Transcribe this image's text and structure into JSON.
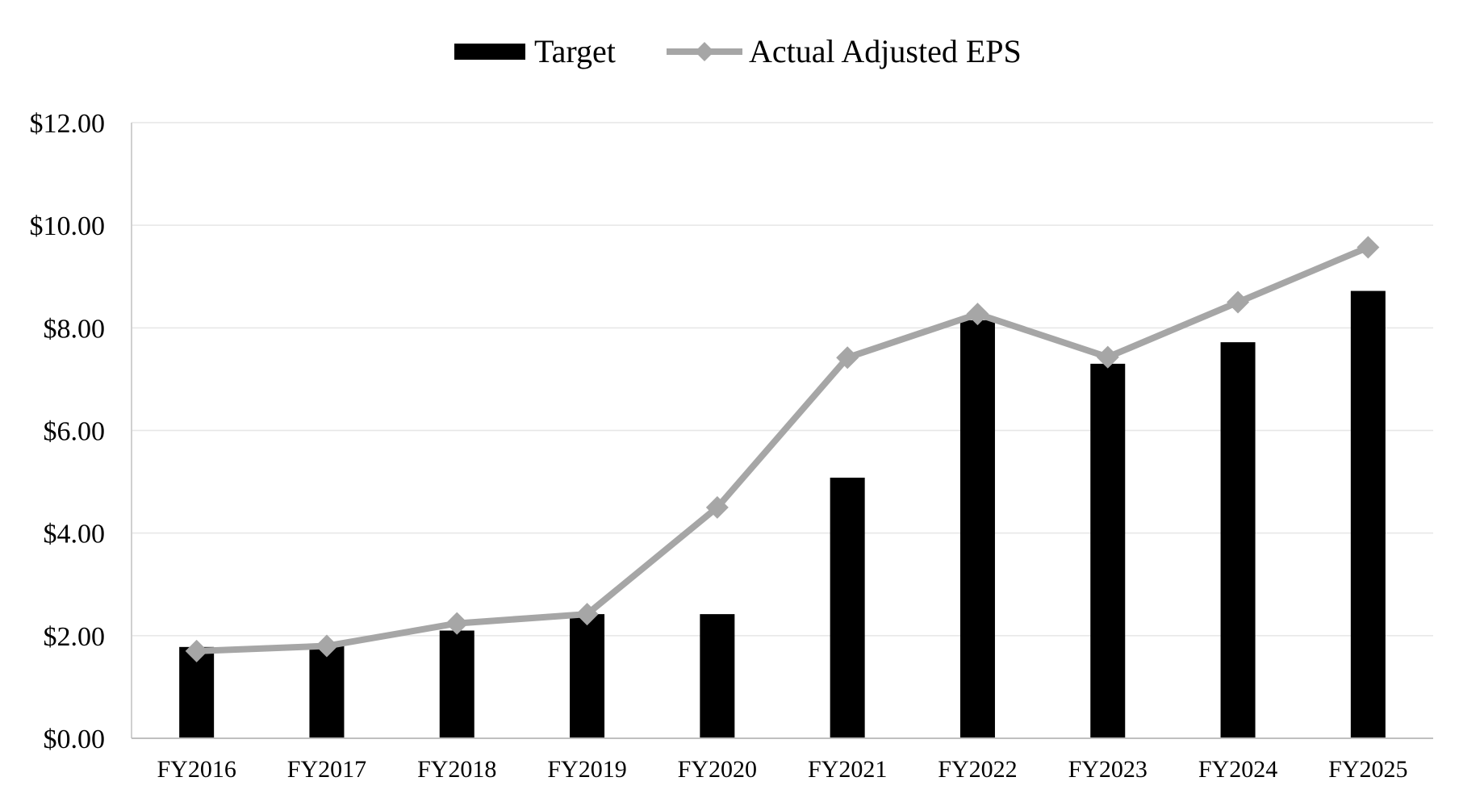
{
  "chart_data": {
    "type": "bar",
    "categories": [
      "FY2016",
      "FY2017",
      "FY2018",
      "FY2019",
      "FY2020",
      "FY2021",
      "FY2022",
      "FY2023",
      "FY2024",
      "FY2025"
    ],
    "series": [
      {
        "name": "Target",
        "type": "bar",
        "color": "#000000",
        "values": [
          1.78,
          1.82,
          2.1,
          2.42,
          2.42,
          5.08,
          8.15,
          7.3,
          7.72,
          8.72
        ]
      },
      {
        "name": "Actual Adjusted EPS",
        "type": "line",
        "marker": "diamond",
        "color": "#a6a6a6",
        "values": [
          1.7,
          1.8,
          2.24,
          2.42,
          4.5,
          7.42,
          8.27,
          7.43,
          8.5,
          9.57
        ]
      }
    ],
    "y_ticks": [
      "$0.00",
      "$2.00",
      "$4.00",
      "$6.00",
      "$8.00",
      "$10.00",
      "$12.00"
    ],
    "ylim": [
      0,
      12
    ],
    "y_tick_step": 2,
    "grid": true,
    "legend_position": "top-center",
    "title": "",
    "xlabel": "",
    "ylabel": ""
  }
}
